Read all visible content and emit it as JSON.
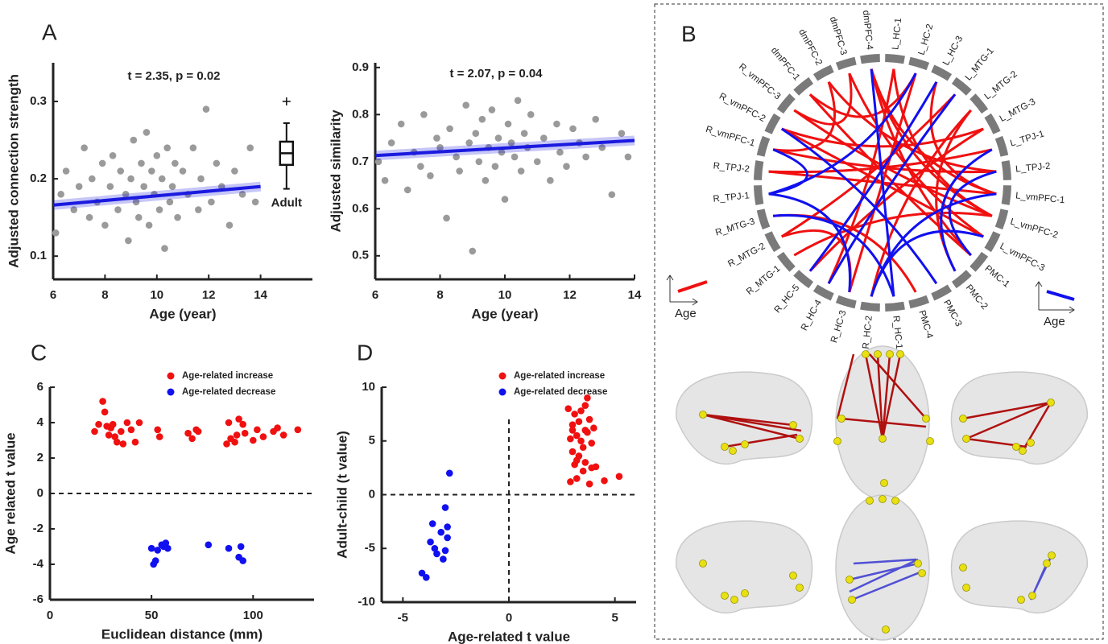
{
  "panel_labels": [
    "A",
    "B",
    "C",
    "D"
  ],
  "chart_data": [
    {
      "type": "scatter",
      "title": "t = 2.35,  p = 0.02",
      "xlabel": "Age (year)",
      "ylabel": "Adjusted connection strength",
      "xlim": [
        6,
        16
      ],
      "ylim": [
        0.07,
        0.35
      ],
      "xticks": [
        6,
        8,
        10,
        12,
        14
      ],
      "yticks": [
        0.1,
        0.2,
        0.3
      ],
      "series": [
        {
          "color": "#9a9a9a",
          "x": [
            6.1,
            6.3,
            6.5,
            6.8,
            7.0,
            7.2,
            7.4,
            7.5,
            7.7,
            7.9,
            8.0,
            8.2,
            8.3,
            8.5,
            8.6,
            8.8,
            8.9,
            9.0,
            9.1,
            9.2,
            9.3,
            9.4,
            9.5,
            9.6,
            9.7,
            9.8,
            9.9,
            10.0,
            10.1,
            10.2,
            10.3,
            10.4,
            10.5,
            10.6,
            10.7,
            10.8,
            11.0,
            11.2,
            11.4,
            11.6,
            11.7,
            11.9,
            12.1,
            12.3,
            12.5,
            12.8,
            13.0,
            13.3,
            13.6,
            13.8
          ],
          "values": [
            0.13,
            0.18,
            0.21,
            0.16,
            0.19,
            0.24,
            0.15,
            0.2,
            0.17,
            0.22,
            0.14,
            0.19,
            0.23,
            0.16,
            0.21,
            0.18,
            0.12,
            0.2,
            0.25,
            0.17,
            0.15,
            0.22,
            0.19,
            0.26,
            0.14,
            0.21,
            0.18,
            0.23,
            0.16,
            0.2,
            0.11,
            0.24,
            0.17,
            0.19,
            0.22,
            0.15,
            0.21,
            0.18,
            0.24,
            0.16,
            0.2,
            0.29,
            0.17,
            0.22,
            0.19,
            0.14,
            0.21,
            0.18,
            0.24,
            0.17
          ]
        }
      ],
      "fit": {
        "color": "#1a1ae0",
        "x": [
          6,
          14
        ],
        "values": [
          0.166,
          0.19
        ]
      },
      "box": {
        "name": "Adult",
        "x": 15,
        "whisker_low": 0.187,
        "q1": 0.218,
        "median": 0.233,
        "q3": 0.248,
        "whisker_high": 0.272,
        "outliers": [
          0.3
        ]
      }
    },
    {
      "type": "scatter",
      "title": "t = 2.07,  p = 0.04",
      "xlabel": "Age (year)",
      "ylabel": "Adjusted similarity",
      "xlim": [
        6,
        14
      ],
      "ylim": [
        0.45,
        0.91
      ],
      "xticks": [
        6,
        8,
        10,
        12,
        14
      ],
      "yticks": [
        0.5,
        0.6,
        0.7,
        0.8,
        0.9
      ],
      "series": [
        {
          "color": "#9a9a9a",
          "x": [
            6.1,
            6.3,
            6.5,
            6.8,
            7.0,
            7.2,
            7.4,
            7.5,
            7.7,
            7.9,
            8.0,
            8.2,
            8.3,
            8.5,
            8.6,
            8.8,
            8.9,
            9.0,
            9.1,
            9.2,
            9.3,
            9.4,
            9.5,
            9.6,
            9.7,
            9.8,
            9.9,
            10.0,
            10.1,
            10.2,
            10.3,
            10.4,
            10.5,
            10.6,
            10.7,
            10.8,
            11.0,
            11.2,
            11.4,
            11.6,
            11.7,
            11.9,
            12.1,
            12.3,
            12.5,
            12.8,
            13.0,
            13.3,
            13.6,
            13.8
          ],
          "values": [
            0.7,
            0.66,
            0.74,
            0.78,
            0.64,
            0.72,
            0.69,
            0.8,
            0.67,
            0.75,
            0.73,
            0.58,
            0.77,
            0.71,
            0.68,
            0.82,
            0.74,
            0.51,
            0.76,
            0.7,
            0.79,
            0.66,
            0.73,
            0.81,
            0.69,
            0.75,
            0.72,
            0.62,
            0.78,
            0.74,
            0.71,
            0.83,
            0.68,
            0.76,
            0.73,
            0.8,
            0.7,
            0.75,
            0.66,
            0.78,
            0.72,
            0.69,
            0.77,
            0.74,
            0.71,
            0.79,
            0.73,
            0.63,
            0.76,
            0.71
          ]
        }
      ],
      "fit": {
        "color": "#1a1ae0",
        "x": [
          6,
          14
        ],
        "values": [
          0.713,
          0.745
        ]
      }
    },
    {
      "type": "scatter",
      "xlabel": "Euclidean distance (mm)",
      "ylabel": "Age related t value",
      "xlim": [
        0,
        130
      ],
      "ylim": [
        -6,
        6
      ],
      "xticks": [
        0,
        50,
        100
      ],
      "yticks": [
        -6,
        -4,
        -2,
        0,
        2,
        4,
        6
      ],
      "ref_lines": {
        "y": 0
      },
      "series": [
        {
          "name": "Age-related increase",
          "color": "#f01010",
          "x": [
            22,
            24,
            26,
            27,
            28,
            29,
            30,
            31,
            32,
            33,
            35,
            36,
            38,
            40,
            42,
            44,
            53,
            54,
            68,
            70,
            72,
            73,
            87,
            88,
            89,
            91,
            92,
            93,
            95,
            96,
            100,
            102,
            105,
            110,
            112,
            115,
            122
          ],
          "values": [
            3.5,
            3.9,
            5.2,
            4.6,
            3.8,
            3.3,
            3.7,
            3.9,
            3.2,
            2.9,
            3.5,
            2.8,
            4.0,
            3.6,
            2.9,
            4.0,
            3.6,
            3.2,
            3.4,
            3.1,
            3.6,
            3.5,
            2.8,
            4.0,
            3.1,
            2.9,
            3.3,
            4.2,
            3.9,
            3.4,
            3.0,
            3.6,
            3.2,
            3.5,
            3.7,
            3.3,
            3.6
          ]
        },
        {
          "name": "Age-related decrease",
          "color": "#1010f0",
          "x": [
            50,
            51,
            52,
            53,
            55,
            56,
            57,
            58,
            78,
            88,
            93,
            94,
            95
          ],
          "values": [
            -3.1,
            -4.0,
            -3.8,
            -3.2,
            -2.9,
            -3.0,
            -2.8,
            -3.1,
            -2.9,
            -3.1,
            -3.6,
            -3.0,
            -3.8
          ]
        }
      ]
    },
    {
      "type": "scatter",
      "xlabel": "Age-related t value",
      "ylabel": "Adult-child (t value)",
      "xlim": [
        -6,
        6
      ],
      "ylim": [
        -10,
        10
      ],
      "xticks": [
        -5,
        0,
        5
      ],
      "yticks": [
        -10,
        -5,
        0,
        5,
        10
      ],
      "ref_lines": {
        "x": 0,
        "y": 0
      },
      "series": [
        {
          "name": "Age-related increase",
          "color": "#f01010",
          "x": [
            2.8,
            2.9,
            3.0,
            3.0,
            3.1,
            3.1,
            3.2,
            3.2,
            3.3,
            3.3,
            3.4,
            3.4,
            3.5,
            3.5,
            3.6,
            3.6,
            3.7,
            3.7,
            3.8,
            3.8,
            3.9,
            3.9,
            4.0,
            4.1,
            4.5,
            5.2,
            2.9,
            3.2,
            3.6,
            3.0
          ],
          "values": [
            8.0,
            1.2,
            6.5,
            4.0,
            7.5,
            2.8,
            5.5,
            1.5,
            6.8,
            3.6,
            7.8,
            5.0,
            4.4,
            2.2,
            6.0,
            3.0,
            9.0,
            5.8,
            1.0,
            7.0,
            2.5,
            4.8,
            6.2,
            2.6,
            1.3,
            1.7,
            5.2,
            3.2,
            8.3,
            6.0
          ]
        },
        {
          "name": "Age-related decrease",
          "color": "#1010f0",
          "x": [
            -4.1,
            -3.9,
            -3.7,
            -3.6,
            -3.5,
            -3.4,
            -3.2,
            -3.1,
            -3.0,
            -3.0,
            -2.9,
            -2.9,
            -2.8
          ],
          "values": [
            -7.3,
            -7.7,
            -4.4,
            -2.7,
            -5.0,
            -5.5,
            -3.5,
            -6.0,
            -1.2,
            -5.2,
            -3.0,
            -4.0,
            2.0
          ]
        }
      ]
    }
  ],
  "chord_diagram": {
    "nodes": [
      "L_HC-1",
      "L_HC-2",
      "L_HC-3",
      "L_MTG-1",
      "L_MTG-2",
      "L_MTG-3",
      "L_TPJ-1",
      "L_TPJ-2",
      "L_vmPFC-1",
      "L_vmPFC-2",
      "L_vmPFC-3",
      "PMC-1",
      "PMC-2",
      "PMC-3",
      "PMC-4",
      "R_HC-1",
      "R_HC-2",
      "R_HC-3",
      "R_HC-4",
      "R_HC-5",
      "R_MTG-1",
      "R_MTG-2",
      "R_MTG-3",
      "R_TPJ-1",
      "R_TPJ-2",
      "R_vmPFC-1",
      "R_vmPFC-2",
      "R_vmPFC-3",
      "dmPFC-1",
      "dmPFC-2",
      "dmPFC-3",
      "dmPFC-4"
    ],
    "increase_color": "#f01010",
    "decrease_color": "#1010f0",
    "increase_edges": [
      [
        "dmPFC-4",
        "L_vmPFC-1"
      ],
      [
        "dmPFC-4",
        "L_vmPFC-2"
      ],
      [
        "dmPFC-3",
        "L_vmPFC-3"
      ],
      [
        "dmPFC-2",
        "L_TPJ-2"
      ],
      [
        "dmPFC-1",
        "PMC-1"
      ],
      [
        "L_HC-1",
        "R_HC-4"
      ],
      [
        "L_HC-1",
        "L_vmPFC-2"
      ],
      [
        "L_HC-2",
        "R_HC-3"
      ],
      [
        "L_HC-3",
        "L_vmPFC-1"
      ],
      [
        "L_MTG-1",
        "R_MTG-2"
      ],
      [
        "L_MTG-2",
        "R_HC-2"
      ],
      [
        "L_MTG-3",
        "R_vmPFC-2"
      ],
      [
        "L_TPJ-1",
        "R_TPJ-2"
      ],
      [
        "R_vmPFC-3",
        "L_vmPFC-2"
      ],
      [
        "R_vmPFC-2",
        "L_vmPFC-3"
      ],
      [
        "R_vmPFC-1",
        "L_TPJ-2"
      ],
      [
        "R_TPJ-2",
        "L_vmPFC-1"
      ],
      [
        "R_MTG-3",
        "PMC-4"
      ],
      [
        "R_MTG-2",
        "R_HC-3"
      ],
      [
        "R_MTG-1",
        "L_vmPFC-2"
      ],
      [
        "R_HC-5",
        "L_MTG-3"
      ],
      [
        "PMC-1",
        "dmPFC-4"
      ],
      [
        "PMC-2",
        "L_MTG-2"
      ],
      [
        "dmPFC-3",
        "R_vmPFC-3"
      ],
      [
        "dmPFC-2",
        "R_vmPFC-1"
      ],
      [
        "L_HC-2",
        "dmPFC-1"
      ]
    ],
    "decrease_edges": [
      [
        "L_HC-2",
        "R_TPJ-1"
      ],
      [
        "L_HC-3",
        "R_HC-5"
      ],
      [
        "L_MTG-1",
        "R_HC-4"
      ],
      [
        "L_TPJ-1",
        "PMC-2"
      ],
      [
        "L_TPJ-2",
        "PMC-1"
      ],
      [
        "R_TPJ-1",
        "R_HC-3"
      ],
      [
        "R_TPJ-1",
        "R_vmPFC-1"
      ],
      [
        "R_MTG-3",
        "R_HC-1"
      ],
      [
        "L_vmPFC-3",
        "R_HC-2"
      ],
      [
        "dmPFC-4",
        "R_HC-1"
      ],
      [
        "L_vmPFC-1",
        "R_HC-2"
      ],
      [
        "R_vmPFC-2",
        "PMC-3"
      ]
    ],
    "left_key": "Age",
    "right_key": "Age"
  }
}
